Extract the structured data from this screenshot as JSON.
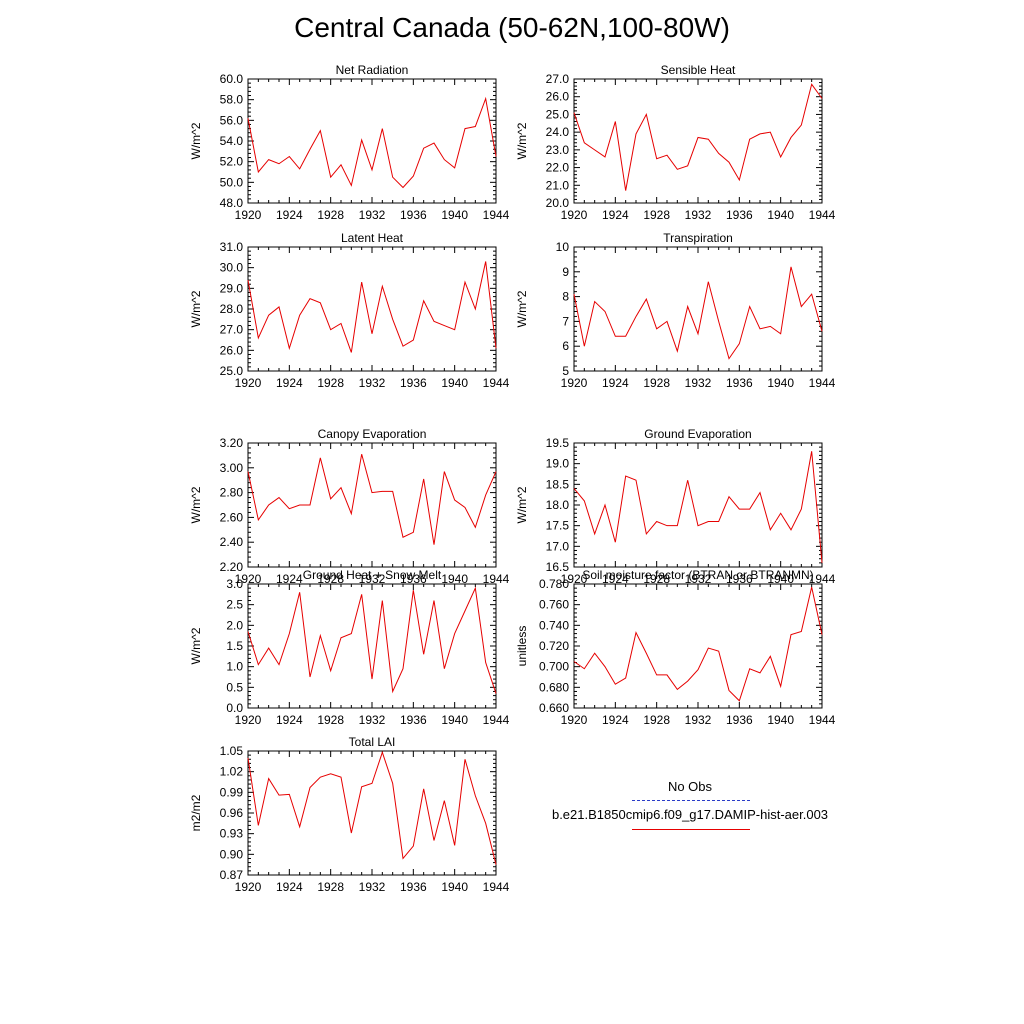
{
  "title": "Central Canada (50-62N,100-80W)",
  "legend": {
    "obs_label": "No Obs",
    "model_label": "b.e21.B1850cmip6.f09_g17.DAMIP-hist-aer.003",
    "obs_color": "#2a3cc8",
    "model_color": "#e60000"
  },
  "chart_data": [
    {
      "type": "line",
      "title": "Net Radiation",
      "ylabel": "W/m^2",
      "ylim": [
        48,
        60
      ],
      "yticks": [
        48,
        50,
        52,
        54,
        56,
        58,
        60
      ],
      "ytick_labels": [
        "48.0",
        "50.0",
        "52.0",
        "54.0",
        "56.0",
        "58.0",
        "60.0"
      ],
      "xlim": [
        1920,
        1944
      ],
      "xticks": [
        1920,
        1924,
        1928,
        1932,
        1936,
        1940,
        1944
      ],
      "x_start": 1920,
      "series": [
        {
          "values": [
            56.2,
            51.0,
            52.2,
            51.8,
            52.5,
            51.3,
            53.2,
            55.0,
            50.5,
            51.7,
            49.7,
            54.1,
            51.2,
            55.2,
            50.5,
            49.5,
            50.6,
            53.3,
            53.8,
            52.2,
            51.4,
            55.2,
            55.4,
            58.1,
            52.5
          ]
        }
      ]
    },
    {
      "type": "line",
      "title": "Sensible Heat",
      "ylabel": "W/m^2",
      "ylim": [
        20,
        27
      ],
      "yticks": [
        20,
        21,
        22,
        23,
        24,
        25,
        26,
        27
      ],
      "ytick_labels": [
        "20.0",
        "21.0",
        "22.0",
        "23.0",
        "24.0",
        "25.0",
        "26.0",
        "27.0"
      ],
      "xlim": [
        1920,
        1944
      ],
      "xticks": [
        1920,
        1924,
        1928,
        1932,
        1936,
        1940,
        1944
      ],
      "x_start": 1920,
      "series": [
        {
          "values": [
            25.1,
            23.4,
            23.0,
            22.6,
            24.6,
            20.7,
            23.9,
            25.0,
            22.5,
            22.7,
            21.9,
            22.1,
            23.7,
            23.6,
            22.8,
            22.3,
            21.3,
            23.6,
            23.9,
            24.0,
            22.6,
            23.7,
            24.4,
            26.7,
            25.9
          ]
        }
      ]
    },
    {
      "type": "line",
      "title": "Latent Heat",
      "ylabel": "W/m^2",
      "ylim": [
        25,
        31
      ],
      "yticks": [
        25,
        26,
        27,
        28,
        29,
        30,
        31
      ],
      "ytick_labels": [
        "25.0",
        "26.0",
        "27.0",
        "28.0",
        "29.0",
        "30.0",
        "31.0"
      ],
      "xlim": [
        1920,
        1944
      ],
      "xticks": [
        1920,
        1924,
        1928,
        1932,
        1936,
        1940,
        1944
      ],
      "x_start": 1920,
      "series": [
        {
          "values": [
            29.4,
            26.6,
            27.7,
            28.1,
            26.1,
            27.7,
            28.5,
            28.3,
            27.0,
            27.3,
            25.9,
            29.3,
            26.8,
            29.1,
            27.5,
            26.2,
            26.5,
            28.4,
            27.4,
            27.2,
            27.0,
            29.3,
            28.0,
            30.3,
            26.1
          ]
        }
      ]
    },
    {
      "type": "line",
      "title": "Transpiration",
      "ylabel": "W/m^2",
      "ylim": [
        5,
        10
      ],
      "yticks": [
        5,
        6,
        7,
        8,
        9,
        10
      ],
      "ytick_labels": [
        "5",
        "6",
        "7",
        "8",
        "9",
        "10"
      ],
      "xlim": [
        1920,
        1944
      ],
      "xticks": [
        1920,
        1924,
        1928,
        1932,
        1936,
        1940,
        1944
      ],
      "x_start": 1920,
      "series": [
        {
          "values": [
            8.1,
            6.0,
            7.8,
            7.4,
            6.4,
            6.4,
            7.2,
            7.9,
            6.7,
            7.0,
            5.8,
            7.6,
            6.5,
            8.6,
            7.0,
            5.5,
            6.1,
            7.6,
            6.7,
            6.8,
            6.5,
            9.2,
            7.6,
            8.1,
            6.6
          ]
        }
      ]
    },
    {
      "type": "line",
      "title": "Canopy Evaporation",
      "ylabel": "W/m^2",
      "ylim": [
        2.2,
        3.2
      ],
      "yticks": [
        2.2,
        2.4,
        2.6,
        2.8,
        3.0,
        3.2
      ],
      "ytick_labels": [
        "2.20",
        "2.40",
        "2.60",
        "2.80",
        "3.00",
        "3.20"
      ],
      "xlim": [
        1920,
        1944
      ],
      "xticks": [
        1920,
        1924,
        1928,
        1932,
        1936,
        1940,
        1944
      ],
      "x_start": 1920,
      "series": [
        {
          "values": [
            2.97,
            2.58,
            2.7,
            2.76,
            2.67,
            2.7,
            2.7,
            3.08,
            2.75,
            2.84,
            2.63,
            3.11,
            2.8,
            2.81,
            2.81,
            2.44,
            2.48,
            2.91,
            2.38,
            2.97,
            2.74,
            2.68,
            2.52,
            2.78,
            2.97
          ]
        }
      ]
    },
    {
      "type": "line",
      "title": "Ground Evaporation",
      "ylabel": "W/m^2",
      "ylim": [
        16.5,
        19.5
      ],
      "yticks": [
        16.5,
        17.0,
        17.5,
        18.0,
        18.5,
        19.0,
        19.5
      ],
      "ytick_labels": [
        "16.5",
        "17.0",
        "17.5",
        "18.0",
        "18.5",
        "19.0",
        "19.5"
      ],
      "xlim": [
        1920,
        1944
      ],
      "xticks": [
        1920,
        1924,
        1928,
        1932,
        1936,
        1940,
        1944
      ],
      "x_start": 1920,
      "series": [
        {
          "values": [
            18.4,
            18.1,
            17.3,
            18.0,
            17.1,
            18.7,
            18.6,
            17.3,
            17.6,
            17.5,
            17.5,
            18.6,
            17.5,
            17.6,
            17.6,
            18.2,
            17.9,
            17.9,
            18.3,
            17.4,
            17.8,
            17.4,
            17.9,
            19.3,
            16.6
          ]
        }
      ]
    },
    {
      "type": "line",
      "title": "Ground Heat + Snow Melt",
      "ylabel": "W/m^2",
      "ylim": [
        0,
        3
      ],
      "yticks": [
        0,
        0.5,
        1.0,
        1.5,
        2.0,
        2.5,
        3.0
      ],
      "ytick_labels": [
        "0.0",
        "0.5",
        "1.0",
        "1.5",
        "2.0",
        "2.5",
        "3.0"
      ],
      "xlim": [
        1920,
        1944
      ],
      "xticks": [
        1920,
        1924,
        1928,
        1932,
        1936,
        1940,
        1944
      ],
      "x_start": 1920,
      "series": [
        {
          "values": [
            1.85,
            1.05,
            1.45,
            1.05,
            1.8,
            2.8,
            0.75,
            1.75,
            0.9,
            1.7,
            1.8,
            2.75,
            0.7,
            2.6,
            0.4,
            0.95,
            2.85,
            1.3,
            2.6,
            0.95,
            1.8,
            2.35,
            2.9,
            1.1,
            0.35
          ]
        }
      ]
    },
    {
      "type": "line",
      "title": "Soil moisture factor (BTRAN or BTRANMN)",
      "ylabel": "unitless",
      "ylim": [
        0.66,
        0.78
      ],
      "yticks": [
        0.66,
        0.68,
        0.7,
        0.72,
        0.74,
        0.76,
        0.78
      ],
      "ytick_labels": [
        "0.660",
        "0.680",
        "0.700",
        "0.720",
        "0.740",
        "0.760",
        "0.780"
      ],
      "xlim": [
        1920,
        1944
      ],
      "xticks": [
        1920,
        1924,
        1928,
        1932,
        1936,
        1940,
        1944
      ],
      "x_start": 1920,
      "series": [
        {
          "values": [
            0.705,
            0.698,
            0.713,
            0.7,
            0.683,
            0.689,
            0.733,
            0.713,
            0.692,
            0.692,
            0.678,
            0.686,
            0.697,
            0.718,
            0.715,
            0.677,
            0.667,
            0.698,
            0.694,
            0.71,
            0.681,
            0.731,
            0.734,
            0.777,
            0.731
          ]
        }
      ]
    },
    {
      "type": "line",
      "title": "Total LAI",
      "ylabel": "m2/m2",
      "ylim": [
        0.87,
        1.05
      ],
      "yticks": [
        0.87,
        0.9,
        0.93,
        0.96,
        0.99,
        1.02,
        1.05
      ],
      "ytick_labels": [
        "0.87",
        "0.90",
        "0.93",
        "0.96",
        "0.99",
        "1.02",
        "1.05"
      ],
      "xlim": [
        1920,
        1944
      ],
      "xticks": [
        1920,
        1924,
        1928,
        1932,
        1936,
        1940,
        1944
      ],
      "x_start": 1920,
      "series": [
        {
          "values": [
            1.04,
            0.942,
            1.01,
            0.986,
            0.987,
            0.94,
            0.997,
            1.012,
            1.017,
            1.012,
            0.931,
            0.998,
            1.003,
            1.048,
            1.003,
            0.894,
            0.912,
            0.995,
            0.92,
            0.978,
            0.913,
            1.038,
            0.985,
            0.945,
            0.885
          ]
        }
      ]
    }
  ]
}
